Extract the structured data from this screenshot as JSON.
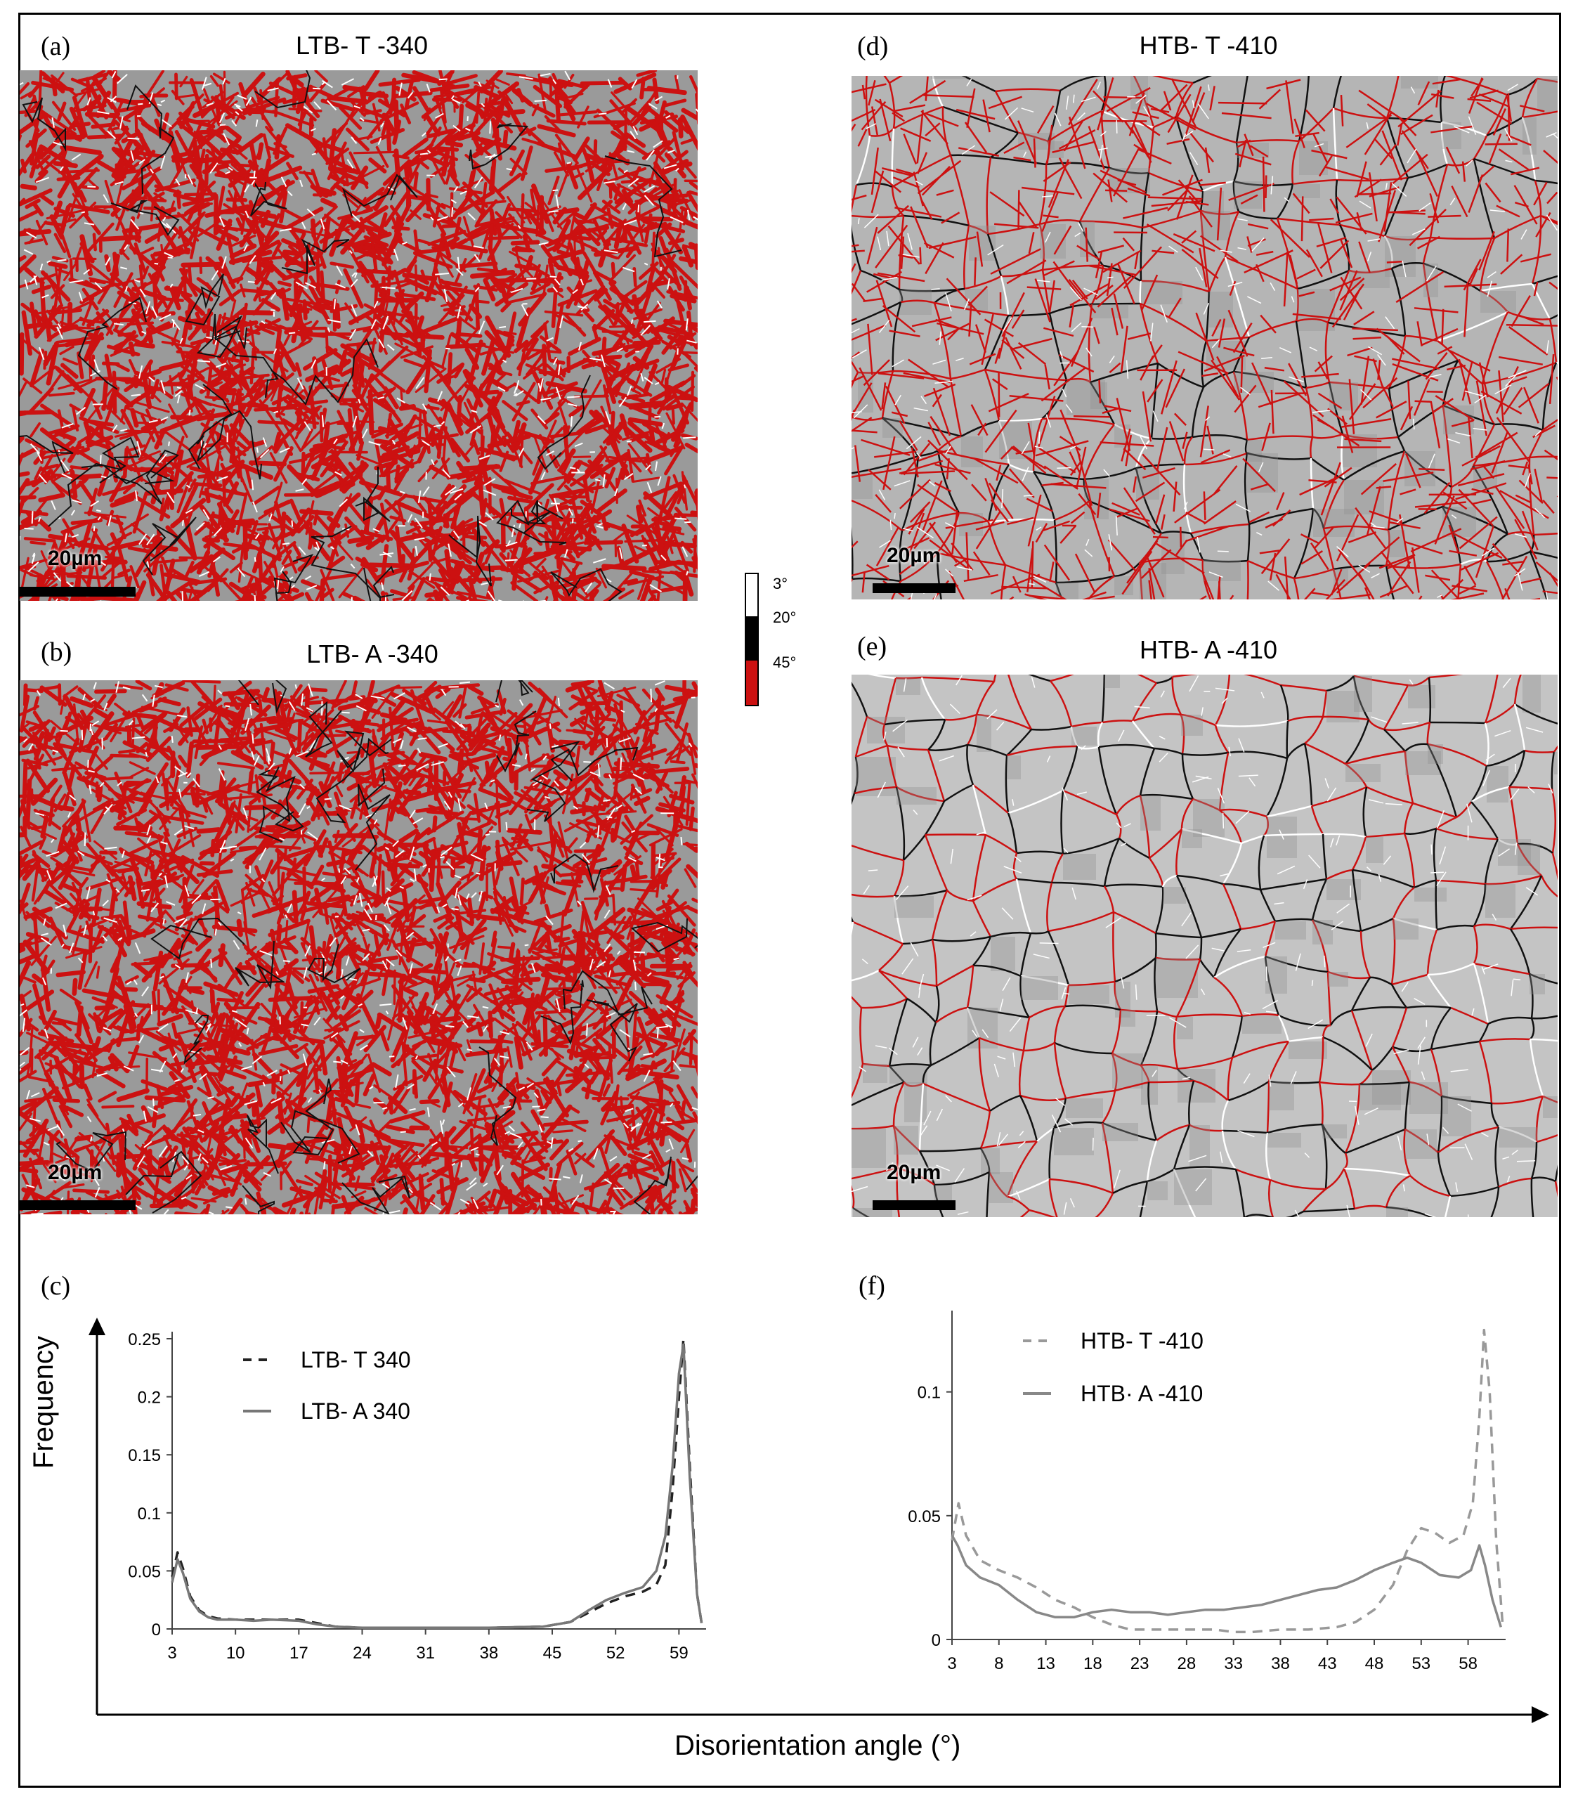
{
  "panels": [
    {
      "id": "a",
      "label": "(a)",
      "title": "LTB- T -340",
      "scale_label": "20µm",
      "map": "lath"
    },
    {
      "id": "b",
      "label": "(b)",
      "title": "LTB- A -340",
      "scale_label": "20µm",
      "map": "lath"
    },
    {
      "id": "d",
      "label": "(d)",
      "title": "HTB- T -410",
      "scale_label": "20µm",
      "map": "mixed"
    },
    {
      "id": "e",
      "label": "(e)",
      "title": "HTB- A -410",
      "scale_label": "20µm",
      "map": "grain"
    }
  ],
  "colorbar": {
    "labels": [
      "3°",
      "20°",
      "45°"
    ],
    "colors": [
      "#ffffff",
      "#000000",
      "#cc1111"
    ]
  },
  "colors": {
    "background_grey": "#9a9a9a",
    "light_grey": "#c4c4c4",
    "high_angle": "#cc1111",
    "mid_angle": "#111111",
    "low_angle": "#ffffff"
  },
  "shared_xlabel": "Disorientation angle (°)",
  "chart_data": [
    {
      "type": "line",
      "label": "(c)",
      "ylabel": "Frequency",
      "xlabel": "",
      "xlim": [
        3,
        62
      ],
      "ylim": [
        0,
        0.25
      ],
      "xticks": [
        3,
        10,
        17,
        24,
        31,
        38,
        45,
        52,
        59
      ],
      "yticks": [
        0,
        0.05,
        0.1,
        0.15,
        0.2,
        0.25
      ],
      "ytick_labels": [
        "0",
        "0.05",
        "0.1",
        "0.15",
        "0.2",
        "0.25"
      ],
      "series": [
        {
          "name": "LTB- T 340",
          "style": "dashed",
          "color": "#222222",
          "points": [
            [
              3,
              0.045
            ],
            [
              3.6,
              0.066
            ],
            [
              4.2,
              0.052
            ],
            [
              5,
              0.028
            ],
            [
              6,
              0.016
            ],
            [
              7,
              0.011
            ],
            [
              8,
              0.009
            ],
            [
              10,
              0.008
            ],
            [
              12,
              0.008
            ],
            [
              14,
              0.008
            ],
            [
              17,
              0.008
            ],
            [
              19,
              0.005
            ],
            [
              21,
              0.002
            ],
            [
              24,
              0.001
            ],
            [
              31,
              0.001
            ],
            [
              38,
              0.001
            ],
            [
              44,
              0.002
            ],
            [
              47,
              0.006
            ],
            [
              49,
              0.014
            ],
            [
              51,
              0.022
            ],
            [
              53,
              0.028
            ],
            [
              55,
              0.032
            ],
            [
              56.5,
              0.038
            ],
            [
              57.5,
              0.055
            ],
            [
              58.3,
              0.12
            ],
            [
              59,
              0.2
            ],
            [
              59.5,
              0.25
            ],
            [
              60.2,
              0.14
            ],
            [
              61,
              0.03
            ],
            [
              61.5,
              0.005
            ]
          ]
        },
        {
          "name": "LTB- A 340",
          "style": "solid",
          "color": "#777777",
          "points": [
            [
              3,
              0.04
            ],
            [
              3.6,
              0.06
            ],
            [
              4.2,
              0.048
            ],
            [
              5,
              0.026
            ],
            [
              6,
              0.015
            ],
            [
              7,
              0.01
            ],
            [
              8,
              0.008
            ],
            [
              10,
              0.008
            ],
            [
              12,
              0.007
            ],
            [
              14,
              0.008
            ],
            [
              17,
              0.007
            ],
            [
              19,
              0.004
            ],
            [
              21,
              0.002
            ],
            [
              24,
              0.001
            ],
            [
              31,
              0.001
            ],
            [
              38,
              0.001
            ],
            [
              44,
              0.002
            ],
            [
              47,
              0.006
            ],
            [
              49,
              0.016
            ],
            [
              51,
              0.025
            ],
            [
              53,
              0.031
            ],
            [
              55,
              0.036
            ],
            [
              56.5,
              0.05
            ],
            [
              57.5,
              0.08
            ],
            [
              58.3,
              0.14
            ],
            [
              59,
              0.22
            ],
            [
              59.5,
              0.245
            ],
            [
              60.2,
              0.13
            ],
            [
              61,
              0.03
            ],
            [
              61.5,
              0.005
            ]
          ]
        }
      ]
    },
    {
      "type": "line",
      "label": "(f)",
      "ylabel": "",
      "xlabel": "",
      "xlim": [
        3,
        62
      ],
      "ylim": [
        0,
        0.13
      ],
      "xticks": [
        3,
        8,
        13,
        18,
        23,
        28,
        33,
        38,
        43,
        48,
        53,
        58
      ],
      "yticks": [
        0,
        0.05,
        0.1
      ],
      "ytick_labels": [
        "0",
        "0.05",
        "0.1"
      ],
      "series": [
        {
          "name": "HTB- T -410",
          "style": "dashed",
          "color": "#999999",
          "points": [
            [
              3,
              0.04
            ],
            [
              3.7,
              0.055
            ],
            [
              4.5,
              0.042
            ],
            [
              6,
              0.032
            ],
            [
              8,
              0.028
            ],
            [
              10,
              0.025
            ],
            [
              12,
              0.021
            ],
            [
              14,
              0.016
            ],
            [
              16,
              0.013
            ],
            [
              18,
              0.009
            ],
            [
              20,
              0.006
            ],
            [
              22,
              0.004
            ],
            [
              25,
              0.004
            ],
            [
              28,
              0.004
            ],
            [
              31,
              0.004
            ],
            [
              33,
              0.003
            ],
            [
              35,
              0.003
            ],
            [
              38,
              0.004
            ],
            [
              41,
              0.004
            ],
            [
              44,
              0.005
            ],
            [
              46,
              0.007
            ],
            [
              48,
              0.012
            ],
            [
              50,
              0.022
            ],
            [
              51.5,
              0.036
            ],
            [
              53,
              0.045
            ],
            [
              54.5,
              0.043
            ],
            [
              56,
              0.039
            ],
            [
              57.5,
              0.042
            ],
            [
              58.5,
              0.055
            ],
            [
              59.2,
              0.09
            ],
            [
              59.7,
              0.125
            ],
            [
              60.3,
              0.1
            ],
            [
              61,
              0.04
            ],
            [
              61.7,
              0.005
            ]
          ]
        },
        {
          "name": "HTB· A -410",
          "style": "solid",
          "color": "#888888",
          "points": [
            [
              3,
              0.042
            ],
            [
              3.6,
              0.038
            ],
            [
              4.5,
              0.03
            ],
            [
              6,
              0.025
            ],
            [
              8,
              0.022
            ],
            [
              10,
              0.016
            ],
            [
              12,
              0.011
            ],
            [
              14,
              0.009
            ],
            [
              16,
              0.009
            ],
            [
              18,
              0.011
            ],
            [
              20,
              0.012
            ],
            [
              22,
              0.011
            ],
            [
              24,
              0.011
            ],
            [
              26,
              0.01
            ],
            [
              28,
              0.011
            ],
            [
              30,
              0.012
            ],
            [
              32,
              0.012
            ],
            [
              34,
              0.013
            ],
            [
              36,
              0.014
            ],
            [
              38,
              0.016
            ],
            [
              40,
              0.018
            ],
            [
              42,
              0.02
            ],
            [
              44,
              0.021
            ],
            [
              46,
              0.024
            ],
            [
              48,
              0.028
            ],
            [
              50,
              0.031
            ],
            [
              51.5,
              0.033
            ],
            [
              53,
              0.031
            ],
            [
              55,
              0.026
            ],
            [
              57,
              0.025
            ],
            [
              58.3,
              0.028
            ],
            [
              59.2,
              0.038
            ],
            [
              59.8,
              0.03
            ],
            [
              60.6,
              0.016
            ],
            [
              61.5,
              0.005
            ]
          ]
        }
      ]
    }
  ]
}
